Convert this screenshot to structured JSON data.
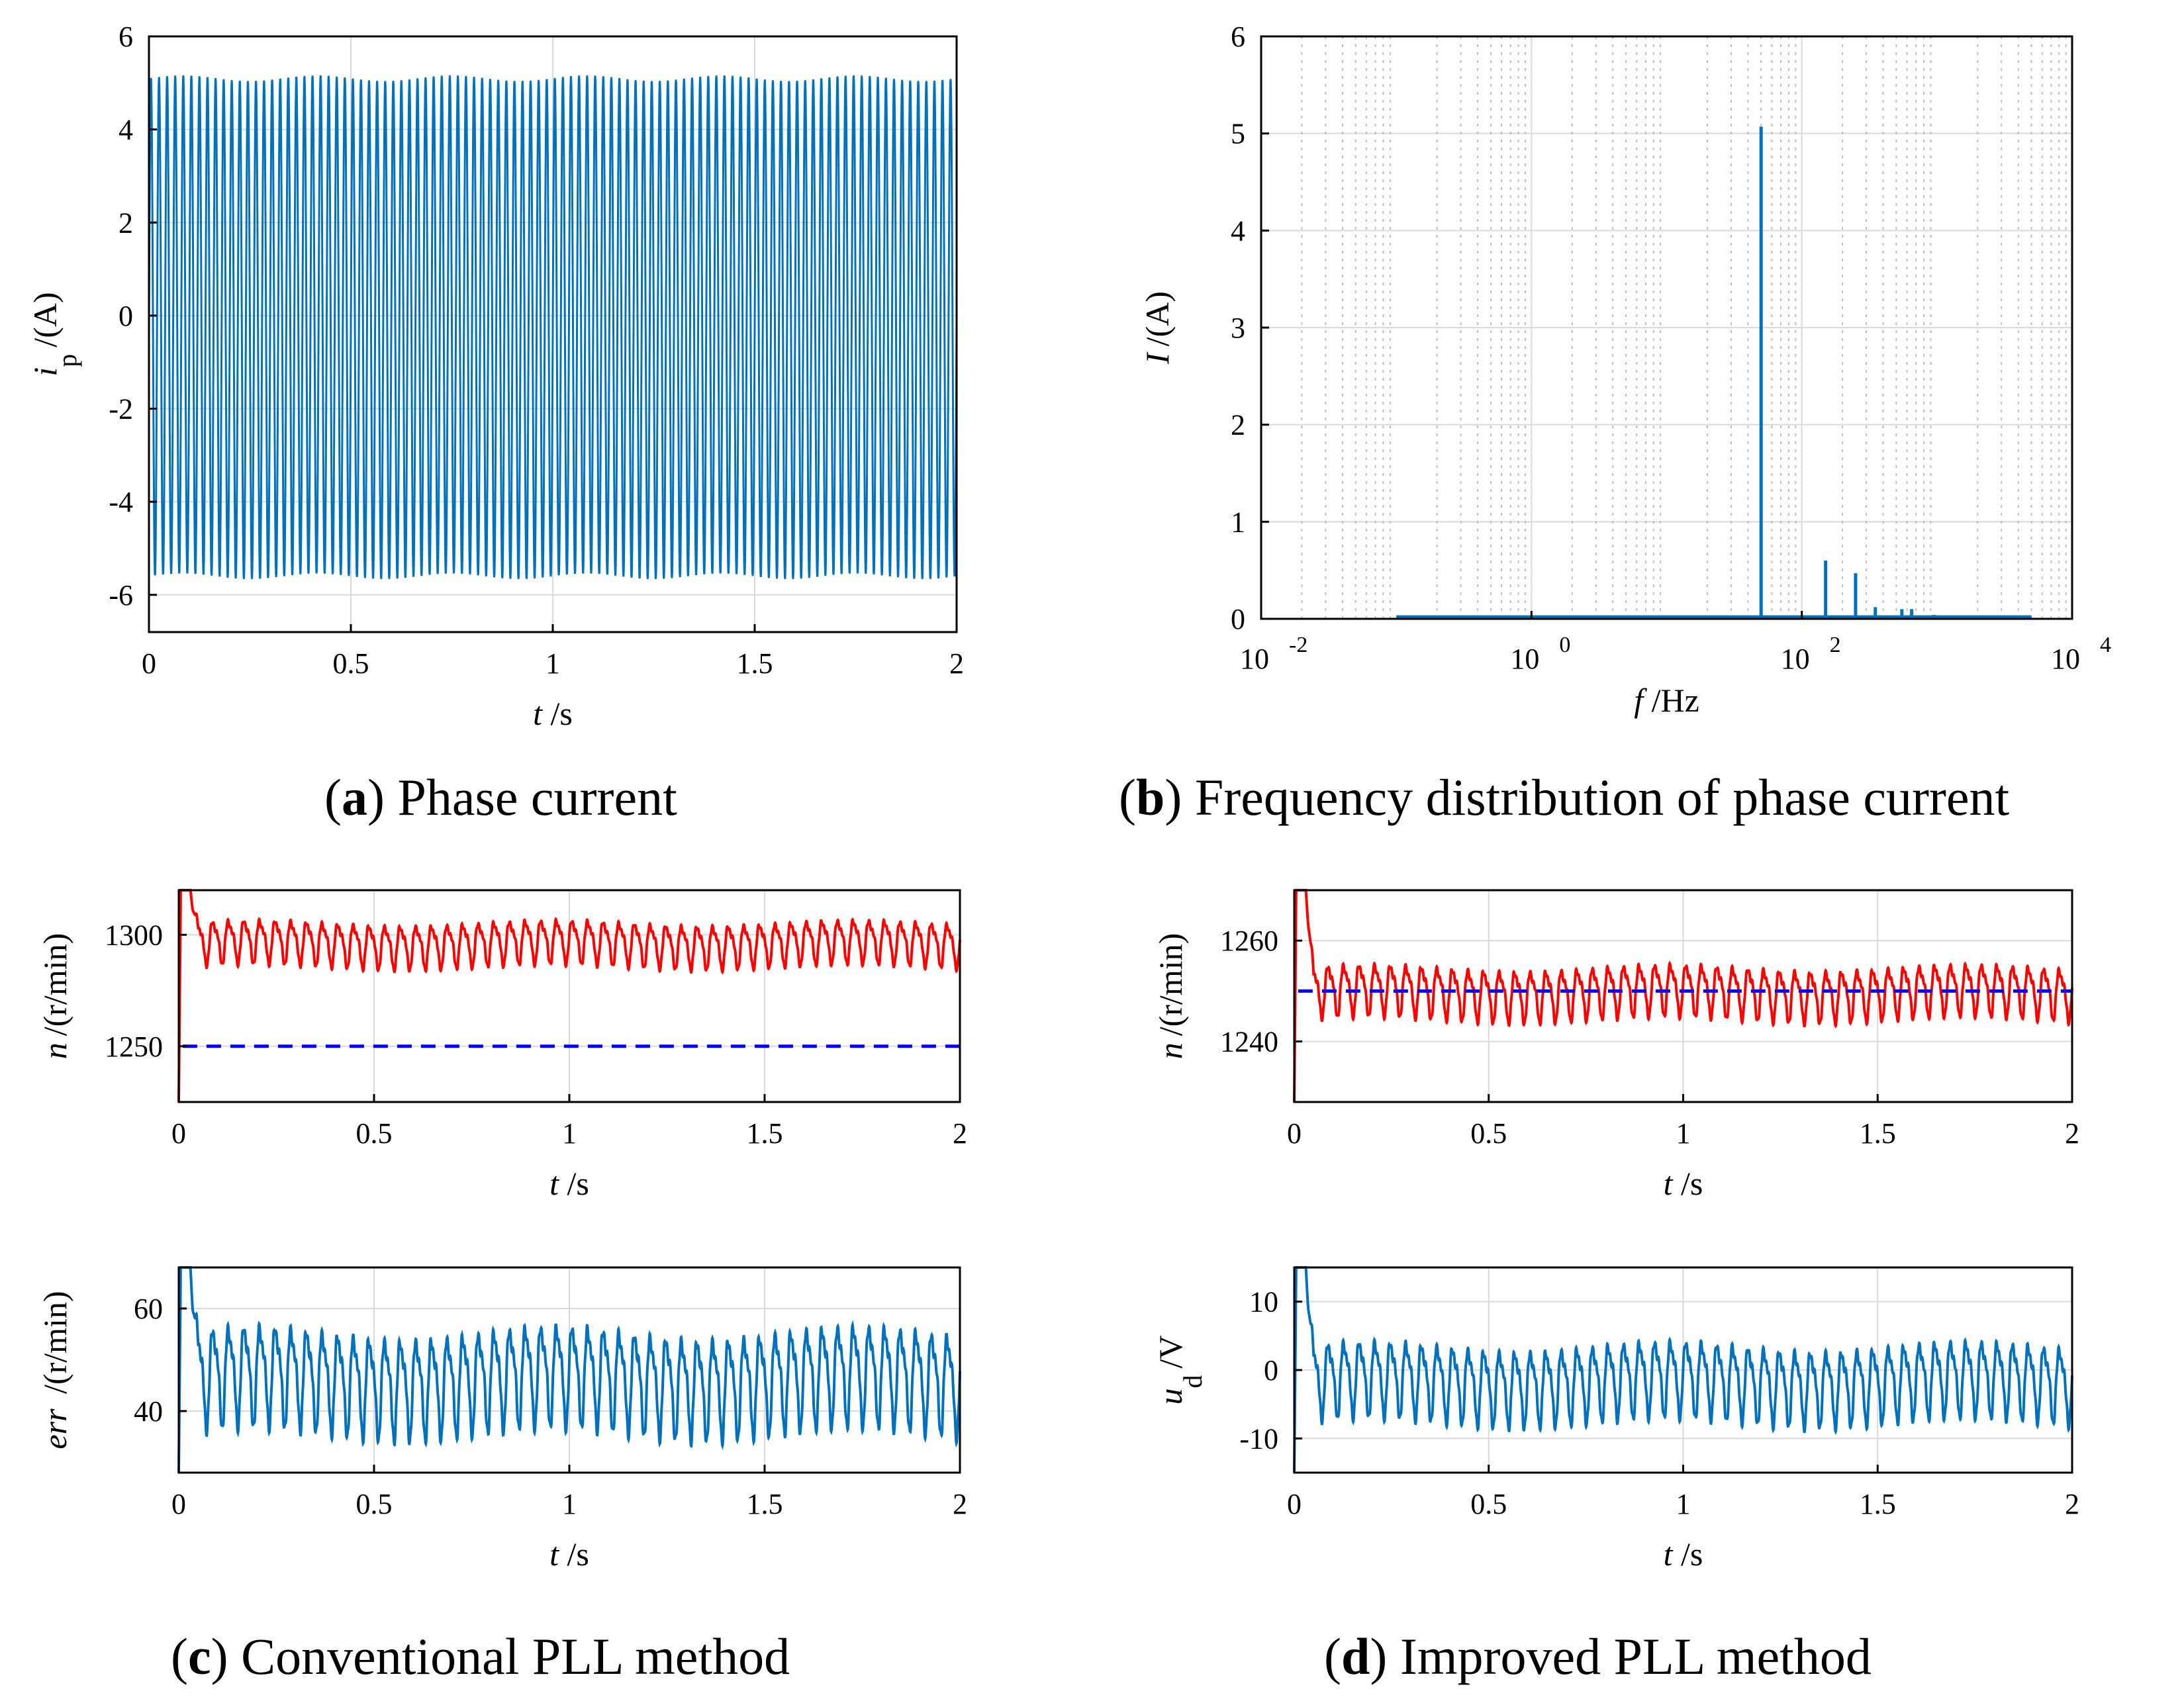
{
  "captions": {
    "a": {
      "letter": "a",
      "text": ") Phase current"
    },
    "b": {
      "letter": "b",
      "text": ") Frequency distribution of phase current"
    },
    "c": {
      "letter": "c",
      "text": ") Conventional PLL method"
    },
    "d": {
      "letter": "d",
      "text": ") Improved PLL method"
    }
  },
  "colors": {
    "blue_trace": "#0072BD",
    "red_trace": "#FF0000",
    "dashed_ref": "#0000FF",
    "grid": "#d9d9d9"
  },
  "chart_data": [
    {
      "id": "a",
      "type": "line",
      "xlabel_var": "t",
      "xlabel_unit": " /s",
      "ylabel_var": "i",
      "ylabel_sub": "p",
      "ylabel_unit": "/(A)",
      "xlim": [
        0,
        2
      ],
      "ylim": [
        -6.8,
        6
      ],
      "xticks": [
        0,
        0.5,
        1,
        1.5,
        2
      ],
      "xtick_labels": [
        "0",
        "0.5",
        "1",
        "1.5",
        "2"
      ],
      "yticks": [
        -6,
        -4,
        -2,
        0,
        2,
        4,
        6
      ],
      "ytick_labels": [
        "-6",
        "-4",
        "-2",
        "0",
        "2",
        "4",
        "6"
      ],
      "grid": true,
      "series": [
        {
          "kind": "sine",
          "frequency_hz": 50,
          "max": 5.1,
          "min": -5.6,
          "color": "#0072BD"
        }
      ]
    },
    {
      "id": "b",
      "type": "line",
      "xscale": "log",
      "xlabel_var": "f",
      "xlabel_unit": " /Hz",
      "ylabel_var": "I",
      "ylabel_unit": "/(A)",
      "xlim": [
        0.01,
        10000
      ],
      "ylim": [
        0,
        6
      ],
      "xticks": [
        0.01,
        1,
        100,
        10000
      ],
      "xtick_base": "10",
      "xtick_exps": [
        "-2",
        "0",
        "2",
        "4"
      ],
      "yticks": [
        0,
        1,
        2,
        3,
        4,
        5,
        6
      ],
      "ytick_labels": [
        "0",
        "1",
        "2",
        "3",
        "4",
        "5",
        "6"
      ],
      "grid": true,
      "spectrum_start_hz": 0.1,
      "spectrum_end_hz": 5000,
      "peaks": [
        {
          "f": 50,
          "amp": 5.07
        },
        {
          "f": 150,
          "amp": 0.6
        },
        {
          "f": 250,
          "amp": 0.47
        },
        {
          "f": 350,
          "amp": 0.12
        },
        {
          "f": 550,
          "amp": 0.1
        },
        {
          "f": 650,
          "amp": 0.1
        },
        {
          "f": 950,
          "amp": 0.04
        },
        {
          "f": 1150,
          "amp": 0.03
        }
      ]
    },
    {
      "id": "c_top",
      "type": "line",
      "xlabel_var": "t",
      "xlabel_unit": " /s",
      "ylabel_var": "n",
      "ylabel_unit": "/(r/min)",
      "xlim": [
        0,
        2
      ],
      "ylim": [
        1225,
        1320
      ],
      "xticks": [
        0,
        0.5,
        1,
        1.5,
        2
      ],
      "xtick_labels": [
        "0",
        "0.5",
        "1",
        "1.5",
        "2"
      ],
      "yticks": [
        1250,
        1300
      ],
      "ytick_labels": [
        "1250",
        "1300"
      ],
      "grid": true,
      "series": [
        {
          "kind": "ripple",
          "frequency_hz": 25,
          "max": 1308,
          "min": 1285,
          "startup_peak": 1320,
          "startup_low": 1225,
          "color": "#FF0000"
        },
        {
          "kind": "constant",
          "value": 1250,
          "dashed": true,
          "color": "#0000FF"
        }
      ]
    },
    {
      "id": "c_bot",
      "type": "line",
      "xlabel_var": "t",
      "xlabel_unit": " /s",
      "ylabel_var": "err",
      "ylabel_unit": " /(r/min)",
      "xlim": [
        0,
        2
      ],
      "ylim": [
        28,
        68
      ],
      "xticks": [
        0,
        0.5,
        1,
        1.5,
        2
      ],
      "xtick_labels": [
        "0",
        "0.5",
        "1",
        "1.5",
        "2"
      ],
      "yticks": [
        40,
        60
      ],
      "ytick_labels": [
        "40",
        "60"
      ],
      "grid": true,
      "series": [
        {
          "kind": "ripple",
          "frequency_hz": 25,
          "max": 58,
          "min": 35,
          "startup_peak": 68,
          "startup_low": 28,
          "color": "#0072BD"
        }
      ]
    },
    {
      "id": "d_top",
      "type": "line",
      "xlabel_var": "t",
      "xlabel_unit": " /s",
      "ylabel_var": "n",
      "ylabel_unit": "/(r/min)",
      "xlim": [
        0,
        2
      ],
      "ylim": [
        1228,
        1270
      ],
      "xticks": [
        0,
        0.5,
        1,
        1.5,
        2
      ],
      "xtick_labels": [
        "0",
        "0.5",
        "1",
        "1.5",
        "2"
      ],
      "yticks": [
        1240,
        1260
      ],
      "ytick_labels": [
        "1240",
        "1260"
      ],
      "grid": true,
      "series": [
        {
          "kind": "ripple",
          "frequency_hz": 25,
          "max": 1256,
          "min": 1244,
          "startup_peak": 1270,
          "startup_low": 1228,
          "color": "#FF0000"
        },
        {
          "kind": "constant",
          "value": 1250,
          "dashed": true,
          "color": "#0000FF"
        }
      ]
    },
    {
      "id": "d_bot",
      "type": "line",
      "xlabel_var": "t",
      "xlabel_unit": " /s",
      "ylabel_var": "u",
      "ylabel_sub": "d",
      "ylabel_unit": "/V",
      "xlim": [
        0,
        2
      ],
      "ylim": [
        -15,
        15
      ],
      "xticks": [
        0,
        0.5,
        1,
        1.5,
        2
      ],
      "xtick_labels": [
        "0",
        "0.5",
        "1",
        "1.5",
        "2"
      ],
      "yticks": [
        -10,
        0,
        10
      ],
      "ytick_labels": [
        "-10",
        "0",
        "10"
      ],
      "grid": true,
      "series": [
        {
          "kind": "ripple",
          "frequency_hz": 25,
          "max": 5,
          "min": -8,
          "startup_peak": 15,
          "startup_low": -15,
          "color": "#0072BD"
        }
      ]
    }
  ]
}
